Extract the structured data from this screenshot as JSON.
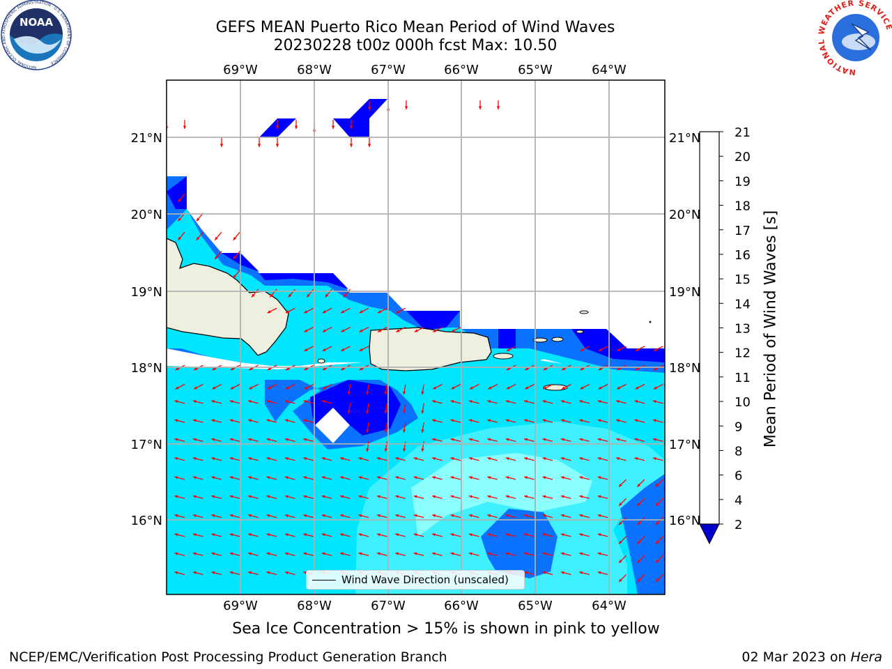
{
  "title_line1": "GEFS MEAN Puerto Rico Mean Period of Wind Waves",
  "title_line2": "20230228 t00z 000h fcst   Max: 10.50",
  "lon_labels": [
    "69°W",
    "68°W",
    "67°W",
    "66°W",
    "65°W",
    "64°W"
  ],
  "lat_labels": [
    "21°N",
    "20°N",
    "19°N",
    "18°N",
    "17°N",
    "16°N"
  ],
  "legend_label": "Wind Wave Direction (unscaled)",
  "colorbar": {
    "label": "Mean Period of Wind Waves [s]",
    "ticks": [
      "2",
      "4",
      "6",
      "8",
      "9",
      "10",
      "11",
      "12",
      "13",
      "14",
      "15",
      "16",
      "17",
      "18",
      "19",
      "20",
      "21"
    ],
    "levels": [
      2,
      4,
      6,
      8,
      9,
      10,
      11,
      12,
      13,
      14,
      15,
      16,
      17,
      18,
      19,
      20,
      21
    ],
    "colors": [
      "#0000ff",
      "#0a72ff",
      "#00e6ff",
      "#40f0ff",
      "#8cffff",
      "#54f08a",
      "#22e65a",
      "#00e600",
      "#55de00",
      "#a8dc00",
      "#cccc00",
      "#ffff00",
      "#ffcc00",
      "#ffa500",
      "#ff7f00",
      "#ff4500",
      "#ff0000"
    ],
    "under_color": "#0000cc"
  },
  "colors": {
    "land": "#efefe0",
    "arrow": "#ff0000",
    "grid": "#b0b0b0"
  },
  "sea_ice_note": "Sea Ice Concentration > 15% is shown in pink to yellow",
  "footer_left": "NCEP/EMC/Verification Post Processing Product Generation Branch",
  "footer_right_date": "02 Mar 2023 on ",
  "footer_right_host": "Hera",
  "logos": {
    "noaa_text": "NOAA",
    "noaa_ring": "NATIONAL OCEANIC AND ATMOSPHERIC ADMINISTRATION · U.S. DEPARTMENT OF COMMERCE",
    "nws_ring": "NATIONAL WEATHER SERVICE"
  }
}
